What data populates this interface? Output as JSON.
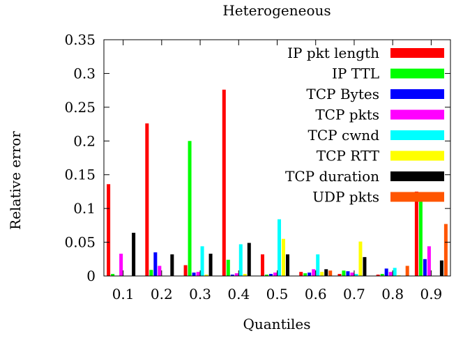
{
  "chart_data": {
    "type": "bar",
    "title": "Heterogeneous",
    "xlabel": "Quantiles",
    "ylabel": "Relative error",
    "ylim": [
      0,
      0.35
    ],
    "yticks": [
      "0",
      "0.05",
      "0.1",
      "0.15",
      "0.2",
      "0.25",
      "0.3",
      "0.35"
    ],
    "categories": [
      "0.1",
      "0.2",
      "0.3",
      "0.4",
      "0.5",
      "0.6",
      "0.7",
      "0.8",
      "0.9"
    ],
    "legend_position": "top-right",
    "grid": false,
    "series": [
      {
        "name": "IP pkt length",
        "color": "#ff0000",
        "values": [
          0.136,
          0.226,
          0.016,
          0.276,
          0.032,
          0.006,
          0.003,
          0.002,
          0.125
        ]
      },
      {
        "name": "IP TTL",
        "color": "#00ff00",
        "values": [
          0.003,
          0.009,
          0.2,
          0.024,
          0.002,
          0.004,
          0.008,
          0.003,
          0.115
        ]
      },
      {
        "name": "TCP Bytes",
        "color": "#0000ff",
        "values": [
          0.0,
          0.035,
          0.005,
          0.002,
          0.003,
          0.005,
          0.007,
          0.011,
          0.025
        ]
      },
      {
        "name": "TCP pkts",
        "color": "#ff00ff",
        "values": [
          0.033,
          0.015,
          0.006,
          0.004,
          0.005,
          0.01,
          0.005,
          0.006,
          0.044
        ]
      },
      {
        "name": "TCP cwnd",
        "color": "#00ffff",
        "values": [
          0.0,
          0.0,
          0.044,
          0.047,
          0.084,
          0.032,
          0.003,
          0.012,
          0.0
        ]
      },
      {
        "name": "TCP RTT",
        "color": "#ffff00",
        "values": [
          0.0,
          0.0,
          0.002,
          0.003,
          0.055,
          0.006,
          0.051,
          0.001,
          0.0
        ]
      },
      {
        "name": "TCP duration",
        "color": "#000000",
        "values": [
          0.064,
          0.032,
          0.033,
          0.049,
          0.032,
          0.01,
          0.028,
          0.0,
          0.023
        ]
      },
      {
        "name": "UDP pkts",
        "color": "#ff5500",
        "values": [
          0.0,
          0.0,
          0.0,
          0.0,
          0.0,
          0.008,
          0.0,
          0.015,
          0.077
        ]
      }
    ]
  }
}
